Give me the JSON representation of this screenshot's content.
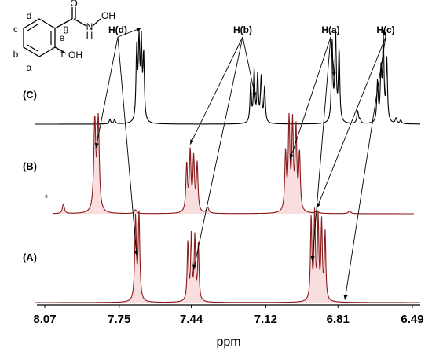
{
  "chart_data": {
    "type": "line",
    "title": "",
    "xlabel": "ppm",
    "ylabel": "",
    "xlim": [
      8.07,
      6.49
    ],
    "x_reversed": true,
    "xticks": [
      "8.07",
      "7.75",
      "7.44",
      "7.12",
      "6.81",
      "6.49"
    ],
    "xtick_values": [
      8.07,
      7.75,
      7.44,
      7.12,
      6.81,
      6.49
    ],
    "grid": false,
    "colors": {
      "C": "#000000",
      "B": "#8b1a1a",
      "A": "#8b1a1a",
      "fill": "#f4c2c6"
    },
    "series": [
      {
        "name": "(C)",
        "peaks": [
          {
            "x": 7.675,
            "h": 0.78,
            "w": 0.0035
          },
          {
            "x": 7.665,
            "h": 0.88,
            "w": 0.0035
          },
          {
            "x": 7.655,
            "h": 0.85,
            "w": 0.0035
          },
          {
            "x": 7.645,
            "h": 0.72,
            "w": 0.0035
          },
          {
            "x": 7.79,
            "h": 0.05,
            "w": 0.004
          },
          {
            "x": 7.77,
            "h": 0.05,
            "w": 0.004
          },
          {
            "x": 7.185,
            "h": 0.44,
            "w": 0.0035
          },
          {
            "x": 7.17,
            "h": 0.58,
            "w": 0.0035
          },
          {
            "x": 7.155,
            "h": 0.52,
            "w": 0.0035
          },
          {
            "x": 7.14,
            "h": 0.5,
            "w": 0.0035
          },
          {
            "x": 7.125,
            "h": 0.4,
            "w": 0.0035
          },
          {
            "x": 6.835,
            "h": 0.9,
            "w": 0.0035
          },
          {
            "x": 6.82,
            "h": 0.98,
            "w": 0.0035
          },
          {
            "x": 6.805,
            "h": 0.8,
            "w": 0.0035
          },
          {
            "x": 6.825,
            "h": 0.06,
            "w": 0.004
          },
          {
            "x": 6.725,
            "h": 0.14,
            "w": 0.004
          },
          {
            "x": 6.715,
            "h": 0.04,
            "w": 0.004
          },
          {
            "x": 6.64,
            "h": 0.45,
            "w": 0.0035
          },
          {
            "x": 6.625,
            "h": 0.55,
            "w": 0.0035
          },
          {
            "x": 6.615,
            "h": 0.92,
            "w": 0.0035
          },
          {
            "x": 6.6,
            "h": 0.7,
            "w": 0.0035
          },
          {
            "x": 6.56,
            "h": 0.06,
            "w": 0.004
          },
          {
            "x": 6.54,
            "h": 0.04,
            "w": 0.004
          }
        ]
      },
      {
        "name": "(B)",
        "peaks": [
          {
            "x": 7.855,
            "h": 0.94,
            "w": 0.005
          },
          {
            "x": 7.84,
            "h": 0.96,
            "w": 0.005
          },
          {
            "x": 7.99,
            "h": 0.1,
            "w": 0.005
          },
          {
            "x": 7.68,
            "h": 0.04,
            "w": 0.006
          },
          {
            "x": 7.46,
            "h": 0.5,
            "w": 0.004
          },
          {
            "x": 7.445,
            "h": 0.62,
            "w": 0.004
          },
          {
            "x": 7.43,
            "h": 0.55,
            "w": 0.004
          },
          {
            "x": 7.415,
            "h": 0.5,
            "w": 0.004
          },
          {
            "x": 7.37,
            "h": 0.06,
            "w": 0.006
          },
          {
            "x": 7.035,
            "h": 0.6,
            "w": 0.004
          },
          {
            "x": 7.02,
            "h": 0.95,
            "w": 0.004
          },
          {
            "x": 7.005,
            "h": 0.9,
            "w": 0.004
          },
          {
            "x": 6.99,
            "h": 0.85,
            "w": 0.004
          },
          {
            "x": 6.975,
            "h": 0.6,
            "w": 0.004
          },
          {
            "x": 6.9,
            "h": 0.03,
            "w": 0.006
          },
          {
            "x": 6.76,
            "h": 0.03,
            "w": 0.006
          }
        ]
      },
      {
        "name": "(A)",
        "peaks": [
          {
            "x": 7.68,
            "h": 0.92,
            "w": 0.004
          },
          {
            "x": 7.665,
            "h": 0.96,
            "w": 0.004
          },
          {
            "x": 7.455,
            "h": 0.65,
            "w": 0.0035
          },
          {
            "x": 7.44,
            "h": 0.72,
            "w": 0.0035
          },
          {
            "x": 7.425,
            "h": 0.7,
            "w": 0.0035
          },
          {
            "x": 7.41,
            "h": 0.62,
            "w": 0.0035
          },
          {
            "x": 6.925,
            "h": 0.92,
            "w": 0.0035
          },
          {
            "x": 6.91,
            "h": 0.95,
            "w": 0.0035
          },
          {
            "x": 6.895,
            "h": 0.9,
            "w": 0.0035
          },
          {
            "x": 6.88,
            "h": 0.85,
            "w": 0.0035
          },
          {
            "x": 6.865,
            "h": 0.75,
            "w": 0.0035
          }
        ]
      }
    ],
    "annotations": [
      {
        "label": "H(d)",
        "targets": [
          {
            "series": "(C)",
            "x": 7.655
          },
          {
            "series": "(B)",
            "x": 7.85
          },
          {
            "series": "(A)",
            "x": 7.675
          }
        ]
      },
      {
        "label": "H(b)",
        "targets": [
          {
            "series": "(C)",
            "x": 7.165
          },
          {
            "series": "(B)",
            "x": 7.445
          },
          {
            "series": "(A)",
            "x": 7.43
          }
        ]
      },
      {
        "label": "H(a)",
        "targets": [
          {
            "series": "(C)",
            "x": 6.825
          },
          {
            "series": "(B)",
            "x": 7.015
          },
          {
            "series": "(A)",
            "x": 6.92
          }
        ]
      },
      {
        "label": "H(c)",
        "targets": [
          {
            "series": "(C)",
            "x": 6.615
          },
          {
            "series": "(B)",
            "x": 6.9
          },
          {
            "series": "(A)",
            "x": 6.78
          }
        ]
      }
    ],
    "inset_structure": {
      "ring_labels": [
        "a",
        "b",
        "c",
        "d",
        "e",
        "f"
      ],
      "carbonyl_label": "g",
      "carbonyl_atom": "O",
      "amide_atoms": [
        "N",
        "H"
      ],
      "hydroxylamine": "OH",
      "phenol": "OH"
    },
    "impurity_marker": "*"
  }
}
